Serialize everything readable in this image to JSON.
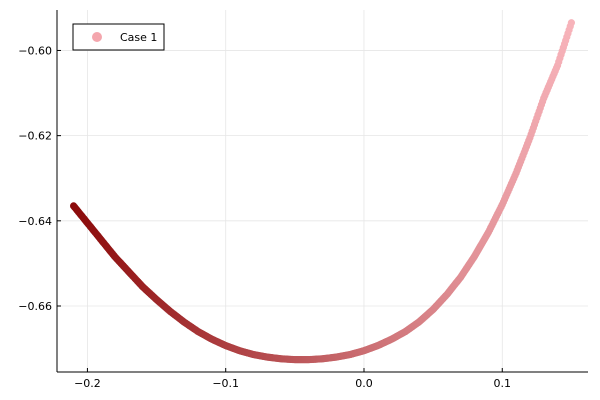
{
  "chart_data": {
    "type": "scatter",
    "title": "",
    "xlabel": "",
    "ylabel": "",
    "xlim": [
      -0.222,
      0.162
    ],
    "ylim": [
      -0.6755,
      -0.5905
    ],
    "x_ticks": [
      -0.2,
      -0.1,
      0.0,
      0.1
    ],
    "x_tick_labels": [
      "−0.2",
      "−0.1",
      "0.0",
      "0.1"
    ],
    "y_ticks": [
      -0.66,
      -0.64,
      -0.62,
      -0.6
    ],
    "y_tick_labels": [
      "−0.66",
      "−0.64",
      "−0.62",
      "−0.60"
    ],
    "grid": true,
    "legend": {
      "position": "top-left"
    },
    "series": [
      {
        "name": "Case 1",
        "legend_color": "#f4a6ad",
        "color_start": "#8b0a0a",
        "color_end": "#f7b3ba",
        "points": [
          [
            -0.21,
            -0.6365
          ],
          [
            -0.2,
            -0.6405
          ],
          [
            -0.19,
            -0.6445
          ],
          [
            -0.18,
            -0.6485
          ],
          [
            -0.17,
            -0.652
          ],
          [
            -0.16,
            -0.6555
          ],
          [
            -0.15,
            -0.6585
          ],
          [
            -0.14,
            -0.6613
          ],
          [
            -0.13,
            -0.6638
          ],
          [
            -0.12,
            -0.666
          ],
          [
            -0.11,
            -0.6678
          ],
          [
            -0.1,
            -0.6693
          ],
          [
            -0.09,
            -0.6705
          ],
          [
            -0.08,
            -0.6714
          ],
          [
            -0.07,
            -0.672
          ],
          [
            -0.06,
            -0.6724
          ],
          [
            -0.05,
            -0.6726
          ],
          [
            -0.04,
            -0.6726
          ],
          [
            -0.03,
            -0.6724
          ],
          [
            -0.02,
            -0.672
          ],
          [
            -0.01,
            -0.6714
          ],
          [
            0.0,
            -0.6705
          ],
          [
            0.01,
            -0.6693
          ],
          [
            0.02,
            -0.6678
          ],
          [
            0.03,
            -0.666
          ],
          [
            0.04,
            -0.6637
          ],
          [
            0.05,
            -0.6608
          ],
          [
            0.06,
            -0.6573
          ],
          [
            0.07,
            -0.6532
          ],
          [
            0.08,
            -0.6483
          ],
          [
            0.09,
            -0.6427
          ],
          [
            0.1,
            -0.6362
          ],
          [
            0.11,
            -0.6288
          ],
          [
            0.12,
            -0.6205
          ],
          [
            0.13,
            -0.6112
          ],
          [
            0.14,
            -0.6035
          ],
          [
            0.15,
            -0.5935
          ]
        ]
      }
    ]
  }
}
